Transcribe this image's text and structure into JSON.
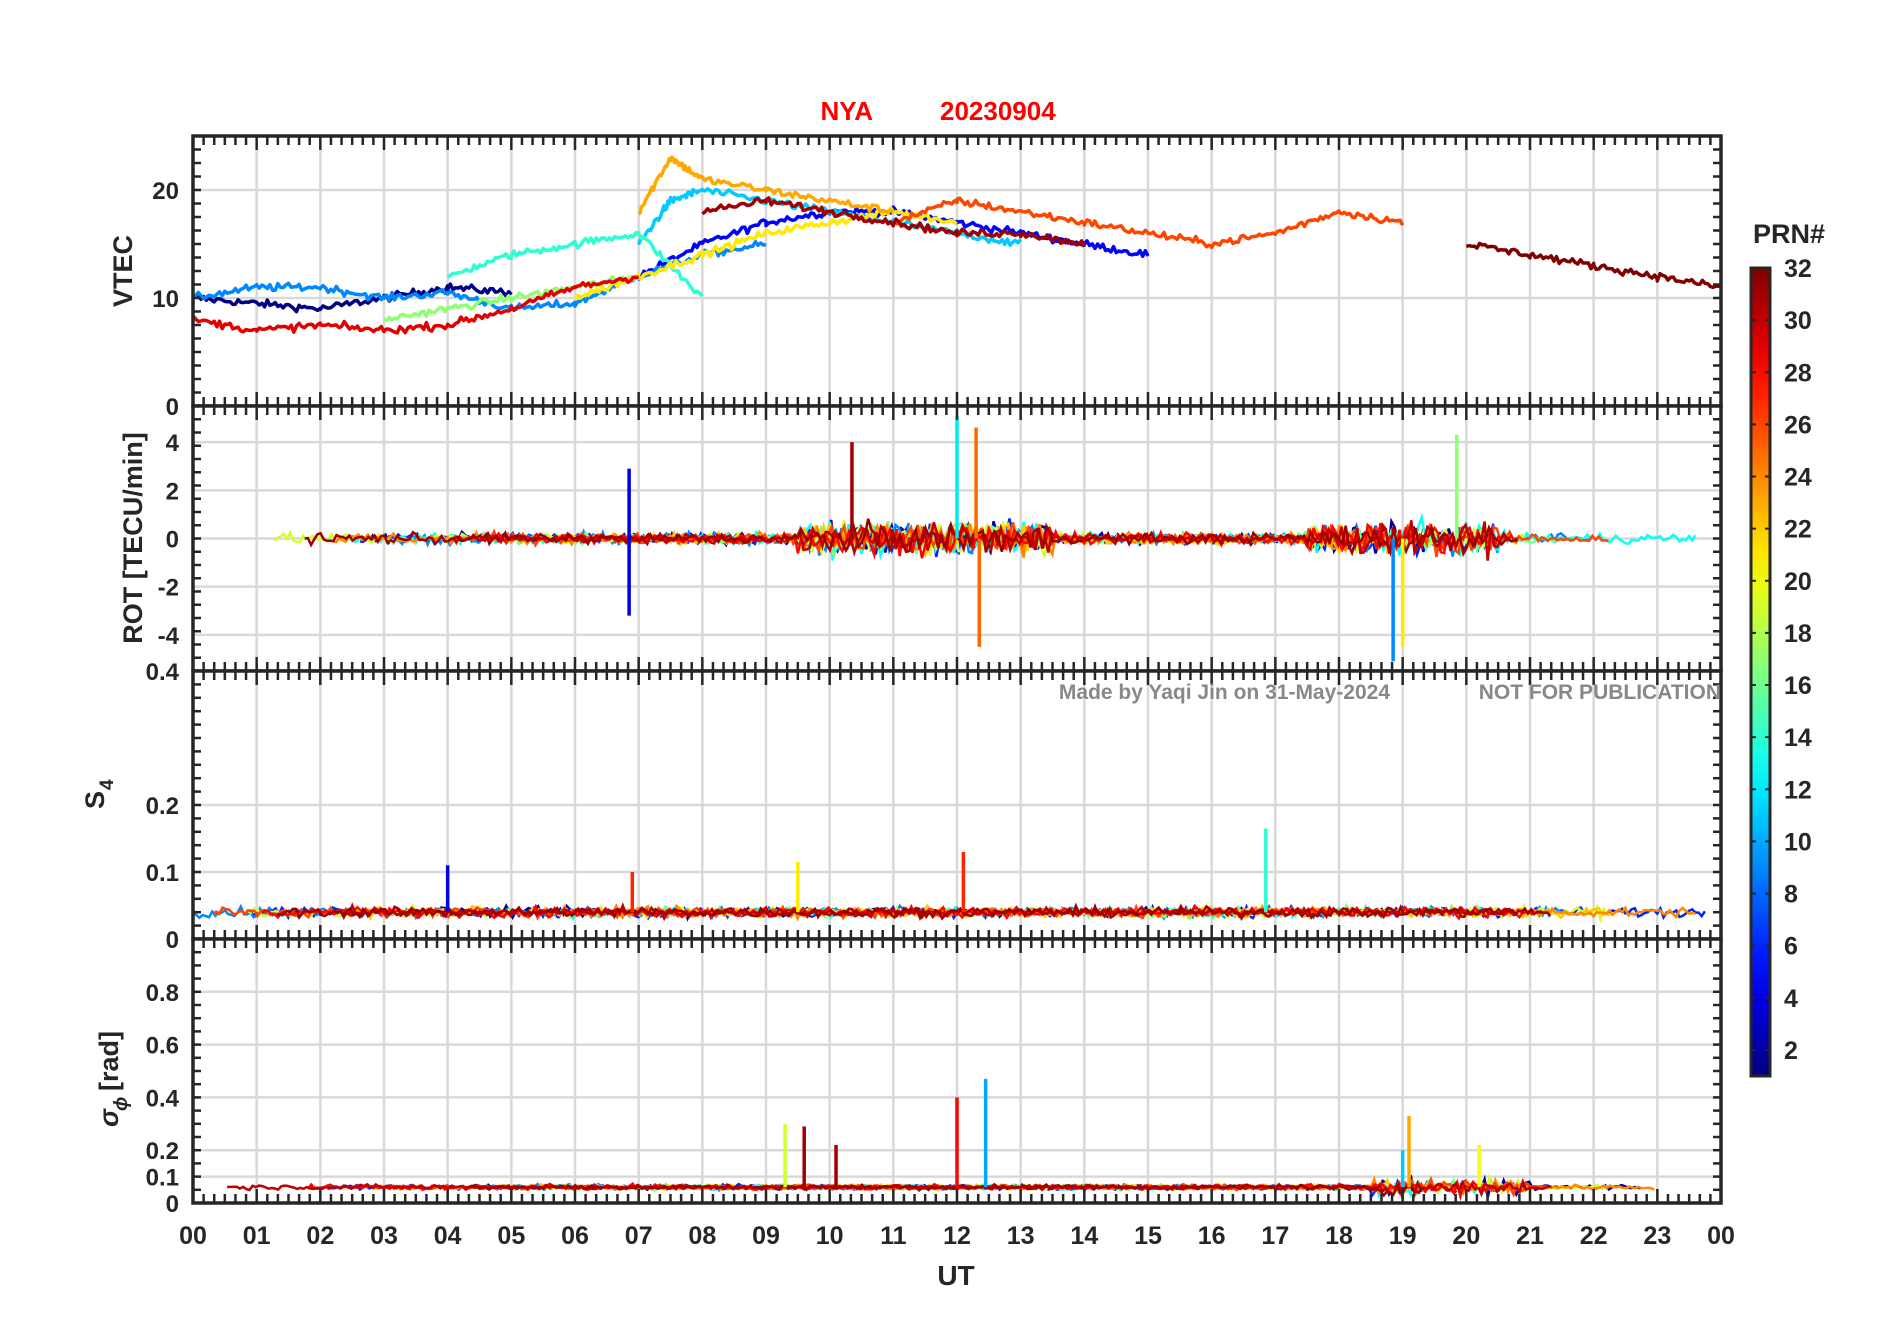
{
  "figure": {
    "title_station": "NYA",
    "title_date": "20230904",
    "watermark_author": "Made by Yaqi Jin on 31-May-2024",
    "watermark_notice": "NOT FOR PUBLICATION",
    "xlabel": "UT",
    "x_ticks": [
      "00",
      "01",
      "02",
      "03",
      "04",
      "05",
      "06",
      "07",
      "08",
      "09",
      "10",
      "11",
      "12",
      "13",
      "14",
      "15",
      "16",
      "17",
      "18",
      "19",
      "20",
      "21",
      "22",
      "23",
      "00"
    ],
    "colorbar": {
      "label": "PRN#",
      "ticks": [
        "2",
        "4",
        "6",
        "8",
        "10",
        "12",
        "14",
        "16",
        "18",
        "20",
        "22",
        "24",
        "26",
        "28",
        "30",
        "32"
      ],
      "range": [
        1,
        32
      ],
      "colormap": "jet"
    },
    "colors": {
      "title": "#ff0000",
      "watermark": "#808080",
      "grid": "#d9d9d9",
      "axis": "#262626"
    }
  },
  "chart_data": [
    {
      "type": "line",
      "panel": "VTEC",
      "ylabel": "VTEC",
      "xlim": [
        0,
        24
      ],
      "ylim": [
        0,
        25
      ],
      "yticks": [
        "0",
        "10",
        "20"
      ],
      "series_color_by": "PRN#",
      "series": [
        {
          "prn": 1,
          "x": [
            0,
            1,
            2,
            3,
            4,
            5
          ],
          "y": [
            10,
            9.5,
            9,
            10,
            11,
            10.5
          ]
        },
        {
          "prn": 5,
          "x": [
            7,
            8,
            9,
            10,
            11,
            12,
            13,
            14,
            15
          ],
          "y": [
            12,
            15,
            17,
            18,
            18,
            17,
            16,
            15,
            14
          ]
        },
        {
          "prn": 9,
          "x": [
            0,
            1,
            2,
            3,
            4,
            5,
            6,
            7,
            8,
            9
          ],
          "y": [
            10,
            11,
            11,
            10,
            10.5,
            9,
            9.5,
            12,
            14,
            15
          ]
        },
        {
          "prn": 11,
          "x": [
            7,
            7.5,
            8,
            9,
            10,
            11,
            12,
            13
          ],
          "y": [
            15,
            19,
            20,
            19,
            18,
            17,
            16,
            15
          ]
        },
        {
          "prn": 14,
          "x": [
            4,
            5,
            6,
            7,
            8
          ],
          "y": [
            12,
            14,
            15,
            16,
            10
          ]
        },
        {
          "prn": 17,
          "x": [
            3,
            4,
            5,
            6,
            7
          ],
          "y": [
            8,
            9,
            10,
            11,
            12
          ]
        },
        {
          "prn": 21,
          "x": [
            6,
            7,
            8,
            9,
            10,
            11,
            12
          ],
          "y": [
            10,
            12,
            14,
            16,
            17,
            18,
            17
          ]
        },
        {
          "prn": 23,
          "x": [
            7,
            7.5,
            8,
            9,
            10,
            11
          ],
          "y": [
            18,
            23,
            21,
            20,
            19,
            18
          ]
        },
        {
          "prn": 26,
          "x": [
            11,
            12,
            13,
            14,
            15,
            16,
            17,
            18,
            19
          ],
          "y": [
            17,
            19,
            18,
            17,
            16,
            15,
            16,
            18,
            17
          ]
        },
        {
          "prn": 29,
          "x": [
            0,
            1,
            2,
            3,
            4,
            5,
            6,
            7
          ],
          "y": [
            8,
            7,
            7.5,
            7,
            7.5,
            9,
            11,
            12
          ]
        },
        {
          "prn": 31,
          "x": [
            8,
            9,
            10,
            11,
            12,
            13,
            14
          ],
          "y": [
            18,
            19,
            18,
            17,
            16,
            16,
            15
          ]
        },
        {
          "prn": 32,
          "x": [
            20,
            21,
            22,
            23,
            24
          ],
          "y": [
            15,
            14,
            13,
            12,
            11
          ]
        }
      ]
    },
    {
      "type": "line",
      "panel": "ROT",
      "ylabel": "ROT [TECU/min]",
      "xlim": [
        0,
        24
      ],
      "ylim": [
        -5.5,
        5.5
      ],
      "yticks": [
        "-4",
        "-2",
        "0",
        "2",
        "4"
      ],
      "series_color_by": "PRN#",
      "notable_spikes": [
        {
          "x": 6.85,
          "y": 2.9,
          "prn": 4
        },
        {
          "x": 6.85,
          "y": -3.2,
          "prn": 4
        },
        {
          "x": 10.35,
          "y": 4.0,
          "prn": 31
        },
        {
          "x": 12.0,
          "y": 5.1,
          "prn": 12
        },
        {
          "x": 12.3,
          "y": 4.6,
          "prn": 25
        },
        {
          "x": 12.35,
          "y": -4.5,
          "prn": 25
        },
        {
          "x": 18.85,
          "y": -5.1,
          "prn": 9
        },
        {
          "x": 19.0,
          "y": -4.5,
          "prn": 21
        },
        {
          "x": 19.85,
          "y": 4.3,
          "prn": 17
        }
      ]
    },
    {
      "type": "line",
      "panel": "S4",
      "ylabel": "S",
      "ylabel_subscript": "4",
      "xlim": [
        0,
        24
      ],
      "ylim": [
        0,
        0.4
      ],
      "yticks": [
        "0",
        "0.1",
        "0.2",
        "0.4"
      ],
      "baseline": 0.04,
      "notable_spikes": [
        {
          "x": 4.0,
          "y": 0.11,
          "prn": 4
        },
        {
          "x": 9.5,
          "y": 0.115,
          "prn": 21
        },
        {
          "x": 12.1,
          "y": 0.13,
          "prn": 27
        },
        {
          "x": 16.85,
          "y": 0.165,
          "prn": 14
        },
        {
          "x": 6.9,
          "y": 0.1,
          "prn": 27
        }
      ]
    },
    {
      "type": "line",
      "panel": "sigma_phi",
      "ylabel": "σ",
      "ylabel_subscript": "ϕ",
      "ylabel_unit": "[rad]",
      "xlim": [
        0,
        24
      ],
      "ylim": [
        0,
        1
      ],
      "yticks": [
        "0",
        "0.1",
        "0.2",
        "0.4",
        "0.6",
        "0.8"
      ],
      "baseline": 0.06,
      "notable_spikes": [
        {
          "x": 9.3,
          "y": 0.3,
          "prn": 19
        },
        {
          "x": 9.6,
          "y": 0.29,
          "prn": 31
        },
        {
          "x": 10.1,
          "y": 0.22,
          "prn": 31
        },
        {
          "x": 12.0,
          "y": 0.4,
          "prn": 28
        },
        {
          "x": 12.45,
          "y": 0.47,
          "prn": 10
        },
        {
          "x": 19.1,
          "y": 0.33,
          "prn": 23
        },
        {
          "x": 19.0,
          "y": 0.2,
          "prn": 11
        },
        {
          "x": 20.2,
          "y": 0.22,
          "prn": 20
        }
      ]
    }
  ]
}
